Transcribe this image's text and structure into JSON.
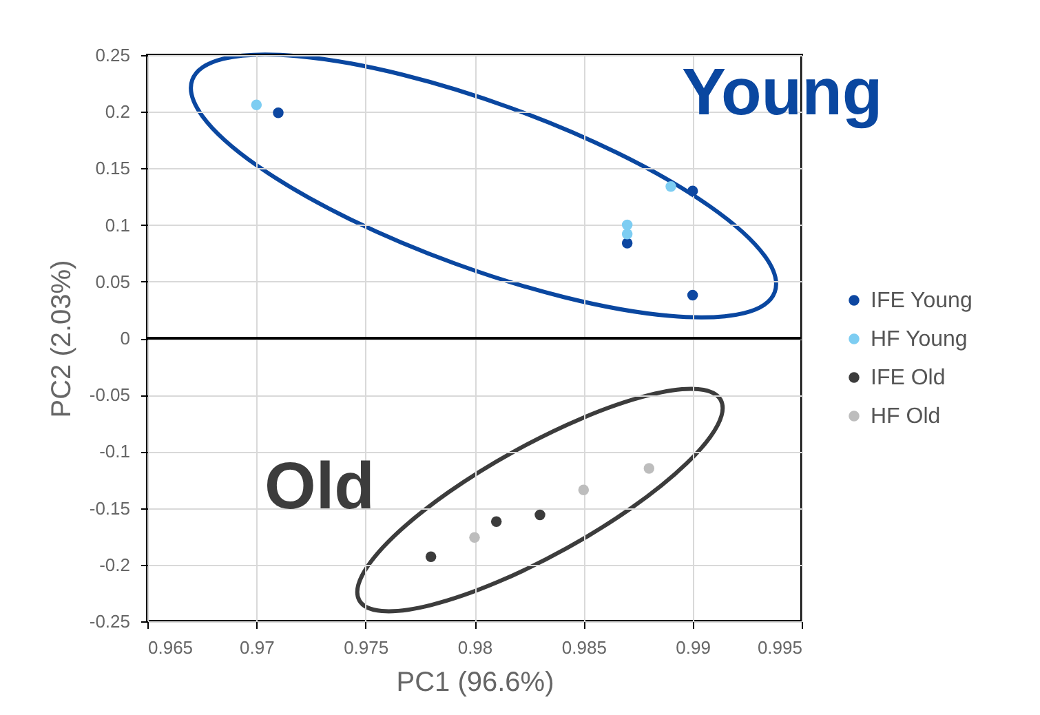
{
  "chart_data": {
    "type": "scatter",
    "xlabel": "PC1 (96.6%)",
    "ylabel": "PC2 (2.03%)",
    "series": [
      {
        "name": "IFE Young",
        "color": "#0d47a1",
        "x": [
          0.971,
          0.99,
          0.987,
          0.99
        ],
        "values": [
          0.199,
          0.13,
          0.084,
          0.038
        ]
      },
      {
        "name": "HF Young",
        "color": "#7dcdf2",
        "x": [
          0.97,
          0.989,
          0.987,
          0.987
        ],
        "values": [
          0.206,
          0.134,
          0.1,
          0.092
        ]
      },
      {
        "name": "IFE Old",
        "color": "#3c3c3c",
        "x": [
          0.978,
          0.981,
          0.983
        ],
        "values": [
          -0.193,
          -0.162,
          -0.156
        ]
      },
      {
        "name": "HF Old",
        "color": "#bdbdbd",
        "x": [
          0.98,
          0.985,
          0.988
        ],
        "values": [
          -0.176,
          -0.134,
          -0.115
        ]
      }
    ],
    "xlim": [
      0.965,
      0.995
    ],
    "xticks": [
      0.965,
      0.97,
      0.975,
      0.98,
      0.985,
      0.99,
      0.995
    ],
    "ylim": [
      -0.25,
      0.25
    ],
    "yticks": [
      -0.25,
      -0.2,
      -0.15,
      -0.1,
      -0.05,
      0,
      0.05,
      0.1,
      0.15,
      0.2,
      0.25
    ],
    "ref_lines": [
      {
        "axis": "y",
        "value": 0,
        "label": null
      }
    ],
    "annotations": [
      "Young",
      "Old"
    ],
    "grid": true,
    "legend": "right",
    "marker": "circle"
  }
}
